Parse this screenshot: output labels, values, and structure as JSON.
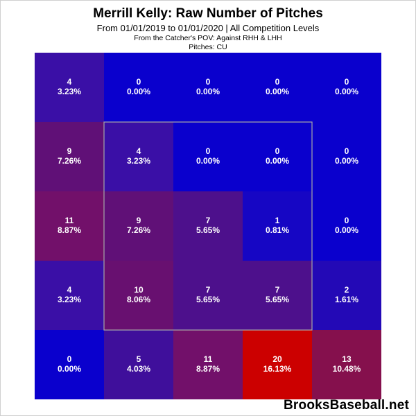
{
  "title": "Merrill Kelly: Raw Number of Pitches",
  "subtitle": "From 01/01/2019 to 01/01/2020 | All Competition Levels",
  "perspective": "From the Catcher's POV:  Against RHH & LHH",
  "pitches": "Pitches:  CU",
  "watermark": "BrooksBaseball.net",
  "chart_data": {
    "type": "heatmap",
    "rows": 5,
    "cols": 5,
    "cells": [
      [
        {
          "count": 4,
          "pct": "3.23%",
          "color": "#3a0fa6"
        },
        {
          "count": 0,
          "pct": "0.00%",
          "color": "#0a00cd"
        },
        {
          "count": 0,
          "pct": "0.00%",
          "color": "#0a00cd"
        },
        {
          "count": 0,
          "pct": "0.00%",
          "color": "#0a00cd"
        },
        {
          "count": 0,
          "pct": "0.00%",
          "color": "#0a00cd"
        }
      ],
      [
        {
          "count": 9,
          "pct": "7.26%",
          "color": "#601077"
        },
        {
          "count": 4,
          "pct": "3.23%",
          "color": "#3a0fa6"
        },
        {
          "count": 0,
          "pct": "0.00%",
          "color": "#0a00cd"
        },
        {
          "count": 0,
          "pct": "0.00%",
          "color": "#0a00cd"
        },
        {
          "count": 0,
          "pct": "0.00%",
          "color": "#0a00cd"
        }
      ],
      [
        {
          "count": 11,
          "pct": "8.87%",
          "color": "#72106a"
        },
        {
          "count": 9,
          "pct": "7.26%",
          "color": "#601077"
        },
        {
          "count": 7,
          "pct": "5.65%",
          "color": "#4d108c"
        },
        {
          "count": 1,
          "pct": "0.81%",
          "color": "#1606c4"
        },
        {
          "count": 0,
          "pct": "0.00%",
          "color": "#0a00cd"
        }
      ],
      [
        {
          "count": 4,
          "pct": "3.23%",
          "color": "#3a0fa6"
        },
        {
          "count": 10,
          "pct": "8.06%",
          "color": "#681070"
        },
        {
          "count": 7,
          "pct": "5.65%",
          "color": "#4d108c"
        },
        {
          "count": 7,
          "pct": "5.65%",
          "color": "#4d108c"
        },
        {
          "count": 2,
          "pct": "1.61%",
          "color": "#2309b6"
        }
      ],
      [
        {
          "count": 0,
          "pct": "0.00%",
          "color": "#0a00cd"
        },
        {
          "count": 5,
          "pct": "4.03%",
          "color": "#3f0f9b"
        },
        {
          "count": 11,
          "pct": "8.87%",
          "color": "#72106a"
        },
        {
          "count": 20,
          "pct": "16.13%",
          "color": "#cc0000"
        },
        {
          "count": 13,
          "pct": "10.48%",
          "color": "#85104d"
        }
      ]
    ]
  }
}
